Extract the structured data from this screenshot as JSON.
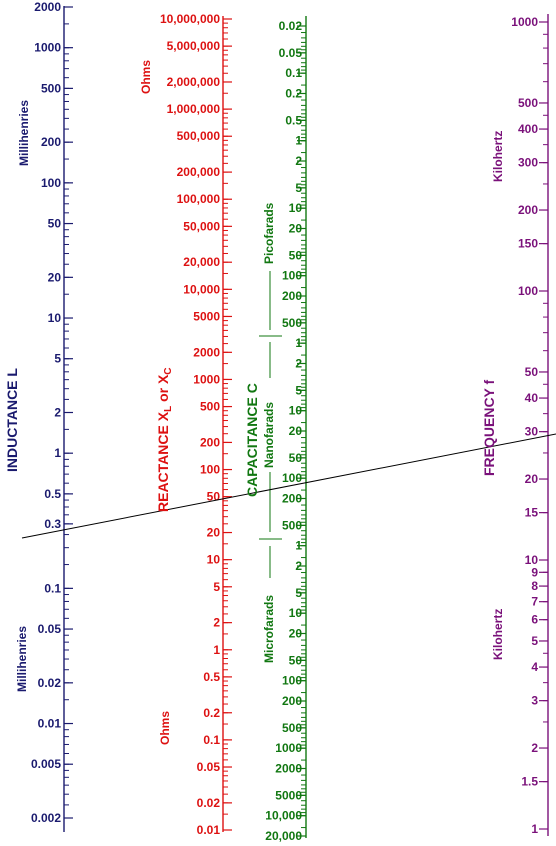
{
  "colors": {
    "inductance": "#1a1a6e",
    "reactance": "#dd1111",
    "capacitance": "#117711",
    "frequency": "#7a117a",
    "example_line": "#000000"
  },
  "inductance": {
    "title": "INDUCTANCE  L",
    "unit_upper": "Millihenries",
    "unit_lower": "Millihenries",
    "ticks": [
      "2000",
      "1000",
      "500",
      "200",
      "100",
      "50",
      "20",
      "10",
      "5",
      "2",
      "1",
      "0.5",
      "0.3",
      "0.1",
      "0.05",
      "0.02",
      "0.01",
      "0.005",
      "0.002"
    ]
  },
  "reactance": {
    "title": "REACTANCE  X",
    "title_sub_l": "L",
    "title_or": " or  X",
    "title_sub_c": "C",
    "unit_upper": "Ohms",
    "unit_lower": "Ohms",
    "ticks": [
      "10,000,000",
      "5,000,000",
      "2,000,000",
      "1,000,000",
      "500,000",
      "200,000",
      "100,000",
      "50,000",
      "20,000",
      "10,000",
      "5000",
      "2000",
      "1000",
      "500",
      "200",
      "100",
      "50",
      "20",
      "10",
      "5",
      "2",
      "1",
      "0.5",
      "0.2",
      "0.1",
      "0.05",
      "0.02",
      "0.01"
    ]
  },
  "capacitance": {
    "title": "CAPACITANCE  C",
    "unit_pico": "Picofarads",
    "unit_nano": "Nanofarads",
    "unit_micro": "Microfarads",
    "ticks": [
      "0.02",
      "0.05",
      "0.1",
      "0.2",
      "0.5",
      "1",
      "2",
      "5",
      "10",
      "20",
      "50",
      "100",
      "200",
      "500",
      "1",
      "2",
      "5",
      "10",
      "20",
      "50",
      "100",
      "200",
      "500",
      "1",
      "2",
      "5",
      "10",
      "20",
      "50",
      "100",
      "200",
      "500",
      "1000",
      "2000",
      "5000",
      "10,000",
      "20,000"
    ]
  },
  "frequency": {
    "title": "FREQUENCY  f",
    "unit_upper": "Kilohertz",
    "unit_lower": "Kilohertz",
    "ticks": [
      "1000",
      "500",
      "400",
      "300",
      "200",
      "150",
      "100",
      "50",
      "40",
      "30",
      "20",
      "15",
      "10",
      "9",
      "8",
      "7",
      "6",
      "5",
      "4",
      "3",
      "2",
      "1.5",
      "1"
    ]
  }
}
